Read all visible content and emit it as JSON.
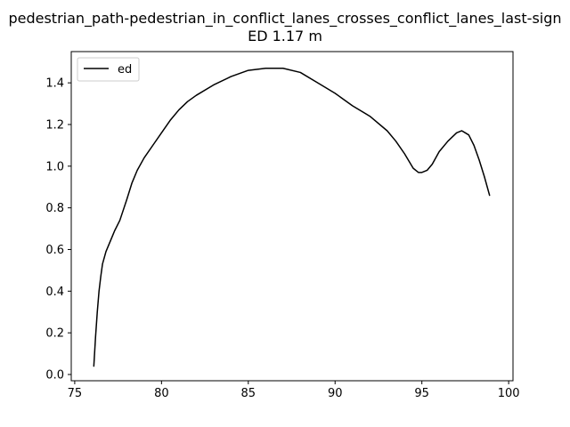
{
  "chart_data": {
    "type": "line",
    "title": "pedestrian_path-pedestrian_in_conflict_lanes_crosses_conflict_lanes_last-sign",
    "subtitle": "ED 1.17 m",
    "xlabel": "",
    "ylabel": "",
    "xlim": [
      74.8,
      100.25
    ],
    "ylim": [
      -0.03,
      1.55
    ],
    "xticks": [
      75,
      80,
      85,
      90,
      95,
      100
    ],
    "yticks": [
      0.0,
      0.2,
      0.4,
      0.6,
      0.8,
      1.0,
      1.2,
      1.4
    ],
    "xtick_labels": [
      "75",
      "80",
      "85",
      "90",
      "95",
      "100"
    ],
    "ytick_labels": [
      "0.0",
      "0.2",
      "0.4",
      "0.6",
      "0.8",
      "1.0",
      "1.2",
      "1.4"
    ],
    "grid": false,
    "legend_position": "top-left",
    "series": [
      {
        "name": "ed",
        "color": "#000000",
        "x": [
          76.1,
          76.2,
          76.3,
          76.4,
          76.5,
          76.6,
          76.8,
          77.0,
          77.3,
          77.6,
          78.0,
          78.3,
          78.6,
          79.0,
          79.5,
          80.0,
          80.5,
          81.0,
          81.5,
          82.0,
          83.0,
          84.0,
          85.0,
          86.0,
          87.0,
          88.0,
          89.0,
          90.0,
          91.0,
          92.0,
          93.0,
          93.5,
          94.0,
          94.5,
          94.8,
          95.0,
          95.3,
          95.6,
          96.0,
          96.5,
          97.0,
          97.3,
          97.5,
          97.7,
          98.0,
          98.3,
          98.6,
          98.9
        ],
        "y": [
          0.04,
          0.18,
          0.3,
          0.4,
          0.47,
          0.53,
          0.59,
          0.63,
          0.69,
          0.74,
          0.84,
          0.92,
          0.98,
          1.04,
          1.1,
          1.16,
          1.22,
          1.27,
          1.31,
          1.34,
          1.39,
          1.43,
          1.46,
          1.47,
          1.47,
          1.45,
          1.4,
          1.35,
          1.29,
          1.24,
          1.17,
          1.12,
          1.06,
          0.99,
          0.97,
          0.97,
          0.98,
          1.01,
          1.07,
          1.12,
          1.16,
          1.17,
          1.16,
          1.15,
          1.1,
          1.03,
          0.95,
          0.86
        ]
      }
    ]
  }
}
